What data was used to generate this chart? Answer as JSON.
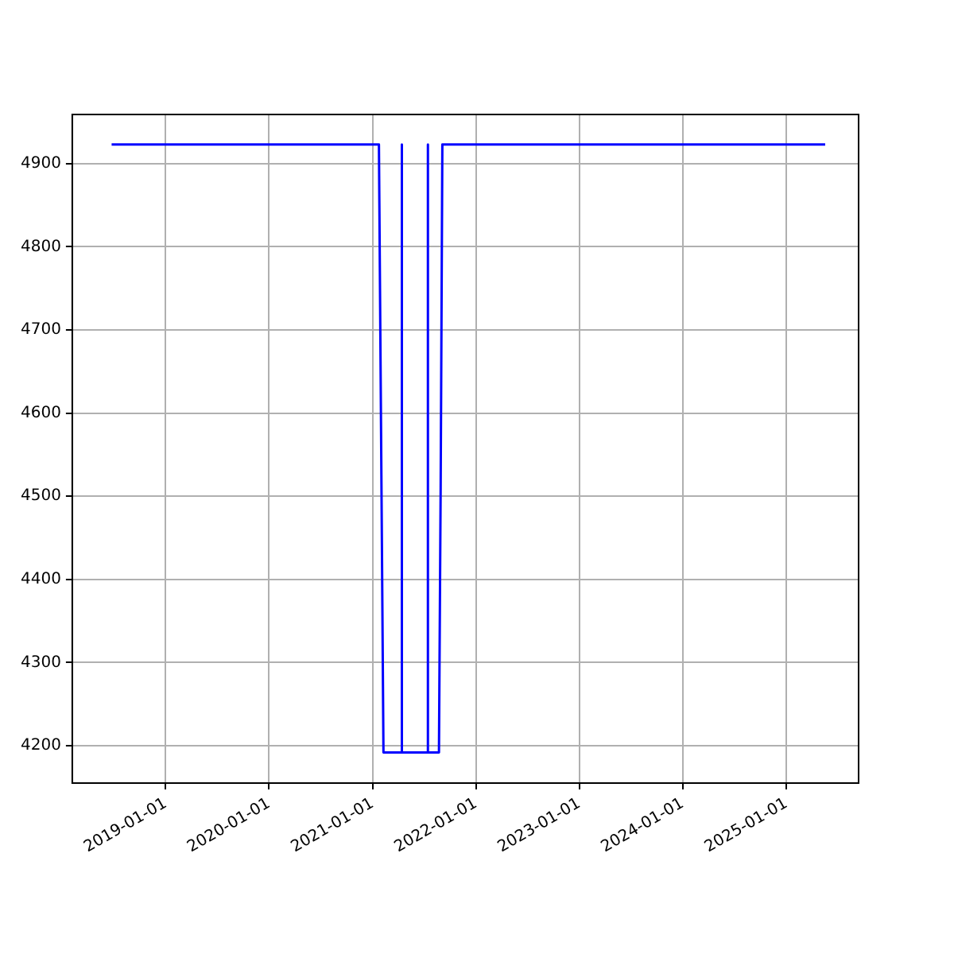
{
  "chart_data": {
    "type": "line",
    "x": [
      "2018-06-24",
      "2021-01-23",
      "2021-02-08",
      "2021-04-14",
      "2021-04-14",
      "2021-04-14",
      "2021-07-15",
      "2021-07-15",
      "2021-07-15",
      "2021-08-23",
      "2021-08-29",
      "2021-09-04",
      "2025-05-18"
    ],
    "series": [
      {
        "color": "#0000ff",
        "values": [
          4923,
          4923,
          4192,
          4192,
          4923,
          4192,
          4192,
          4923,
          4192,
          4192,
          4510,
          4923,
          4923
        ]
      }
    ],
    "xlim": [
      "2018-02-05",
      "2025-09-13"
    ],
    "xticks": [
      "2019-01-01",
      "2020-01-01",
      "2021-01-01",
      "2022-01-01",
      "2023-01-01",
      "2024-01-01",
      "2025-01-01"
    ],
    "ylim": [
      4155,
      4959
    ],
    "yticks": [
      4200,
      4300,
      4400,
      4500,
      4600,
      4700,
      4800,
      4900
    ],
    "grid": true,
    "legend": false,
    "marker": "none",
    "line_style": "solid"
  }
}
